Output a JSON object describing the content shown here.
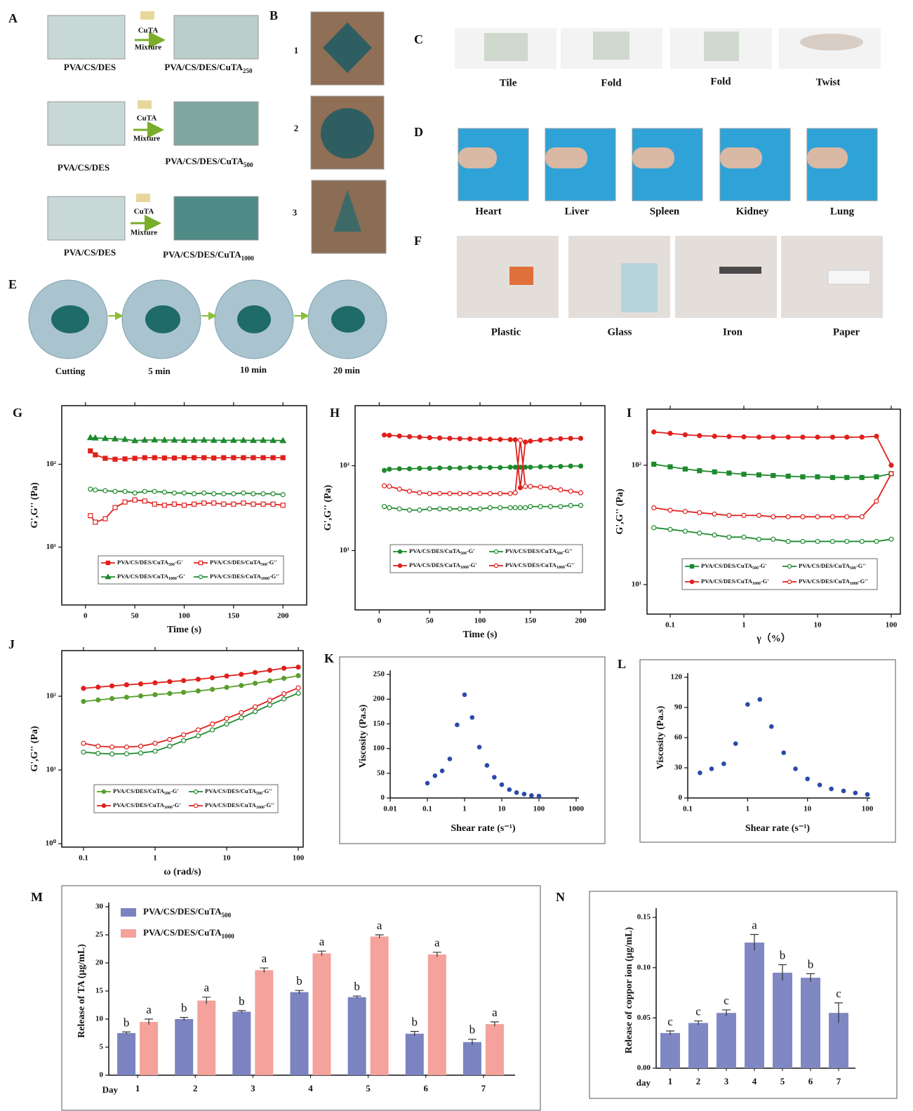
{
  "photo_panels": {
    "A": {
      "letter": "A",
      "rows": [
        {
          "left": "PVA/CS/DES",
          "reagent": "CuTA",
          "mixture": "Mixture",
          "right": "PVA/CS/DES/CuTA250"
        },
        {
          "left": "PVA/CS/DES",
          "reagent": "CuTA",
          "mixture": "Mixture",
          "right": "PVA/CS/DES/CuTA500"
        },
        {
          "left": "PVA/CS/DES",
          "reagent": "CuTA",
          "mixture": "Mixture",
          "right": "PVA/CS/DES/CuTA1000"
        }
      ]
    },
    "B": {
      "letter": "B",
      "items": [
        "1",
        "2",
        "3"
      ]
    },
    "C": {
      "letter": "C",
      "captions": [
        "Tile",
        "Fold",
        "Fold",
        "Twist"
      ]
    },
    "D": {
      "letter": "D",
      "captions": [
        "Heart",
        "Liver",
        "Spleen",
        "Kidney",
        "Lung"
      ]
    },
    "E": {
      "letter": "E",
      "captions": [
        "Cutting",
        "5 min",
        "10 min",
        "20 min"
      ]
    },
    "F": {
      "letter": "F",
      "captions": [
        "Plastic",
        "Glass",
        "Iron",
        "Paper"
      ]
    }
  },
  "chart_data": [
    {
      "panel": "G",
      "type": "line",
      "xlabel": "Time (s)",
      "ylabel": "G',G'' (Pa)",
      "x": [
        5,
        10,
        20,
        30,
        40,
        50,
        60,
        70,
        80,
        90,
        100,
        110,
        120,
        130,
        140,
        150,
        160,
        170,
        180,
        190,
        200
      ],
      "xlim": [
        -24,
        224
      ],
      "xticks": [
        0,
        50,
        100,
        150,
        200
      ],
      "ylog": true,
      "ylim": [
        2,
        510
      ],
      "yticks": [
        {
          "value": 10,
          "label": "10¹"
        },
        {
          "value": 100,
          "label": "10²"
        }
      ],
      "series": [
        {
          "name": "PVA/CS/DES/CuTA500-G'",
          "color": "#e0201c",
          "marker": "square",
          "filled": true,
          "values": [
            145,
            130,
            118,
            115,
            116,
            118,
            120,
            120,
            119,
            119,
            120,
            120,
            120,
            119,
            120,
            120,
            120,
            120,
            120,
            120,
            120
          ]
        },
        {
          "name": "PVA/CS/DES/CuTA500-G''",
          "color": "#e0201c",
          "marker": "square",
          "filled": false,
          "values": [
            24,
            20,
            22,
            30,
            35,
            37,
            36,
            33,
            32,
            33,
            32,
            33,
            34,
            34,
            33,
            33,
            34,
            33,
            33,
            33,
            32
          ]
        },
        {
          "name": "PVA/CS/DES/CuTA1000-G'",
          "color": "#1e8a2e",
          "marker": "triangle",
          "filled": true,
          "values": [
            210,
            208,
            205,
            203,
            200,
            193,
            196,
            197,
            196,
            196,
            195,
            195,
            196,
            195,
            194,
            195,
            195,
            194,
            195,
            194,
            193
          ]
        },
        {
          "name": "PVA/CS/DES/CuTA1000-G''",
          "color": "#1e8a2e",
          "marker": "circle",
          "filled": false,
          "values": [
            50,
            49,
            48,
            47,
            47,
            45,
            47,
            47,
            46,
            45,
            45,
            44,
            45,
            44,
            44,
            44,
            45,
            44,
            44,
            44,
            43
          ]
        }
      ]
    },
    {
      "panel": "H",
      "type": "line",
      "xlabel": "Time (s)",
      "ylabel": "G',G'' (Pa)",
      "x": [
        5,
        10,
        20,
        30,
        40,
        50,
        60,
        70,
        80,
        90,
        100,
        110,
        120,
        130,
        135,
        140,
        145,
        150,
        160,
        170,
        180,
        190,
        200
      ],
      "xlim": [
        -24,
        224
      ],
      "xticks": [
        0,
        50,
        100,
        150,
        200
      ],
      "ylog": true,
      "ylim": [
        2,
        510
      ],
      "yticks": [
        {
          "value": 10,
          "label": "10¹"
        },
        {
          "value": 100,
          "label": "10²"
        }
      ],
      "series": [
        {
          "name": "PVA/CS/DES/CuTA500-G'",
          "color": "#1e8a2e",
          "marker": "circle",
          "filled": true,
          "values": [
            88,
            91,
            92,
            92,
            93,
            93,
            94,
            94,
            94,
            95,
            95,
            95,
            95,
            96,
            96,
            96,
            96,
            96,
            97,
            97,
            98,
            99,
            99
          ]
        },
        {
          "name": "PVA/CS/DES/CuTA500-G''",
          "color": "#1e8a2e",
          "marker": "circle",
          "filled": false,
          "values": [
            33,
            32,
            31,
            30,
            30,
            31,
            31,
            31,
            31,
            31,
            31,
            32,
            32,
            32,
            32,
            32,
            32,
            33,
            33,
            33,
            33,
            34,
            34
          ]
        },
        {
          "name": "PVA/CS/DES/CuTA1000-G'",
          "color": "#e0201c",
          "marker": "circle",
          "filled": true,
          "values": [
            230,
            228,
            224,
            220,
            217,
            214,
            212,
            210,
            208,
            207,
            206,
            205,
            204,
            203,
            202,
            55,
            190,
            195,
            200,
            205,
            208,
            210,
            210
          ]
        },
        {
          "name": "PVA/CS/DES/CuTA1000-G''",
          "color": "#e0201c",
          "marker": "circle",
          "filled": false,
          "values": [
            58,
            57,
            53,
            50,
            48,
            47,
            47,
            47,
            47,
            47,
            47,
            47,
            47,
            47,
            48,
            200,
            57,
            57,
            56,
            55,
            52,
            50,
            48
          ]
        }
      ]
    },
    {
      "panel": "I",
      "type": "line",
      "xlabel": "γ（%）",
      "ylabel": "G',G'' (Pa)",
      "x": [
        0.06,
        0.1,
        0.16,
        0.25,
        0.4,
        0.63,
        1,
        1.6,
        2.5,
        4,
        6.3,
        10,
        16,
        25,
        40,
        63,
        100
      ],
      "xlog": true,
      "xlim": [
        0.0485,
        133
      ],
      "xticks": [
        0.1,
        1,
        10,
        100
      ],
      "ylog": true,
      "ylim": [
        5.66,
        295
      ],
      "yticks": [
        {
          "value": 10,
          "label": "10¹"
        },
        {
          "value": 100,
          "label": "10²"
        }
      ],
      "series": [
        {
          "name": "PVA/CS/DES/CuTA500-G'",
          "color": "#1e8a2e",
          "marker": "square",
          "filled": true,
          "values": [
            102,
            97,
            93,
            90,
            88,
            86,
            84,
            83,
            82,
            81,
            80,
            80,
            79,
            79,
            79,
            80,
            85
          ]
        },
        {
          "name": "PVA/CS/DES/CuTA500-G''",
          "color": "#1e8a2e",
          "marker": "circle",
          "filled": false,
          "values": [
            30,
            29,
            28,
            27,
            26,
            25,
            25,
            24,
            24,
            23,
            23,
            23,
            23,
            23,
            23,
            23,
            24
          ]
        },
        {
          "name": "PVA/CS/DES/CuTA1000-G'",
          "color": "#e0201c",
          "marker": "circle",
          "filled": true,
          "values": [
            190,
            185,
            180,
            177,
            175,
            174,
            173,
            172,
            172,
            172,
            172,
            172,
            172,
            172,
            172,
            175,
            100
          ]
        },
        {
          "name": "PVA/CS/DES/CuTA1000-G''",
          "color": "#e0201c",
          "marker": "circle",
          "filled": false,
          "values": [
            44,
            42,
            41,
            40,
            39,
            38,
            38,
            38,
            37,
            37,
            37,
            37,
            37,
            37,
            37,
            50,
            85
          ]
        }
      ]
    },
    {
      "panel": "J",
      "type": "line",
      "xlabel": "ω (rad/s)",
      "ylabel": "G',G'' (Pa)",
      "x": [
        0.1,
        0.16,
        0.25,
        0.4,
        0.63,
        1,
        1.6,
        2.5,
        4,
        6.3,
        10,
        16,
        25,
        40,
        63,
        100
      ],
      "xlog": true,
      "xlim": [
        0.0497,
        117
      ],
      "xticks": [
        0.1,
        1,
        10,
        100
      ],
      "ylog": true,
      "ylim": [
        0.9,
        416
      ],
      "yticks": [
        {
          "value": 1,
          "label": "10⁰"
        },
        {
          "value": 10,
          "label": "10¹"
        },
        {
          "value": 100,
          "label": "10²"
        }
      ],
      "series": [
        {
          "name": "PVA/CS/DES/CuTA500-G'",
          "color": "#5a9e2f",
          "marker": "circle",
          "filled": true,
          "values": [
            85,
            89,
            93,
            97,
            101,
            105,
            109,
            113,
            118,
            124,
            132,
            140,
            150,
            162,
            175,
            190
          ]
        },
        {
          "name": "PVA/CS/DES/CuTA500-G''",
          "color": "#1e8a2e",
          "marker": "circle",
          "filled": false,
          "values": [
            17.5,
            16.8,
            16.5,
            16.6,
            17,
            18,
            21,
            25,
            29,
            35,
            42,
            51,
            62,
            76,
            92,
            110
          ]
        },
        {
          "name": "PVA/CS/DES/CuTA1000-G'",
          "color": "#e0201c",
          "marker": "circle",
          "filled": true,
          "values": [
            128,
            133,
            138,
            143,
            147,
            152,
            158,
            163,
            170,
            178,
            188,
            198,
            210,
            225,
            240,
            248
          ]
        },
        {
          "name": "PVA/CS/DES/CuTA1000-G''",
          "color": "#e0201c",
          "marker": "circle",
          "filled": false,
          "values": [
            23,
            21,
            20.5,
            20.5,
            21,
            23,
            26,
            30,
            35,
            42,
            50,
            60,
            72,
            88,
            108,
            130
          ]
        }
      ]
    },
    {
      "panel": "K",
      "type": "scatter",
      "xlabel": "Shear rate (s⁻¹)",
      "ylabel": "Viscosity (Pa.s)",
      "color": "#2b4aa8",
      "x": [
        0.1,
        0.16,
        0.25,
        0.4,
        0.63,
        1,
        1.6,
        2.5,
        4,
        6.3,
        10,
        16,
        25,
        40,
        63,
        100
      ],
      "values": [
        30,
        45,
        55,
        79,
        148,
        209,
        163,
        103,
        66,
        42,
        27,
        17,
        11,
        8,
        5,
        4
      ],
      "xlog": true,
      "xlim": [
        0.01,
        1000
      ],
      "xticks": [
        0.01,
        0.1,
        1,
        10,
        100,
        1000
      ],
      "ylim": [
        0,
        250
      ],
      "yticks": [
        0,
        50,
        100,
        150,
        200,
        250
      ]
    },
    {
      "panel": "L",
      "type": "scatter",
      "xlabel": "Shear rate (s⁻¹)",
      "ylabel": "Viscosity (Pa.s)",
      "color": "#2b4aa8",
      "x": [
        0.16,
        0.25,
        0.4,
        0.63,
        1,
        1.6,
        2.5,
        4,
        6.3,
        10,
        16,
        25,
        40,
        63,
        100
      ],
      "values": [
        25,
        29,
        34,
        54,
        93,
        98,
        71,
        45,
        29,
        19,
        13,
        9,
        7,
        5,
        3.5
      ],
      "xlog": true,
      "xlim": [
        0.1,
        100
      ],
      "xticks": [
        0.1,
        1,
        10,
        100
      ],
      "ylim": [
        0,
        120
      ],
      "yticks": [
        0,
        30,
        60,
        90,
        120
      ]
    },
    {
      "panel": "M",
      "type": "bar",
      "xlabel": "Day",
      "ylabel": "Release of TA (μg/mL)",
      "categories": [
        "1",
        "2",
        "3",
        "4",
        "5",
        "6",
        "7"
      ],
      "ylim": [
        0,
        30
      ],
      "yticks": [
        0,
        5,
        10,
        15,
        20,
        25,
        30
      ],
      "series": [
        {
          "name": "PVA/CS/DES/CuTA500",
          "color": "#7b83c0",
          "values": [
            7.5,
            10,
            11.3,
            14.8,
            13.9,
            7.4,
            5.9
          ],
          "errors": [
            0.2,
            0.3,
            0.2,
            0.3,
            0.2,
            0.4,
            0.5
          ],
          "letters": [
            "b",
            "b",
            "b",
            "b",
            "b",
            "b",
            "b"
          ]
        },
        {
          "name": "PVA/CS/DES/CuTA1000",
          "color": "#f4a29b",
          "values": [
            9.5,
            13.3,
            18.7,
            21.7,
            24.7,
            21.5,
            9.1
          ],
          "errors": [
            0.5,
            0.6,
            0.4,
            0.4,
            0.3,
            0.4,
            0.4
          ],
          "letters": [
            "a",
            "a",
            "a",
            "a",
            "a",
            "a",
            "a"
          ]
        }
      ]
    },
    {
      "panel": "N",
      "type": "bar",
      "xlabel": "day",
      "ylabel": "Release of coppor ion (μg/mL)",
      "categories": [
        "1",
        "2",
        "3",
        "4",
        "5",
        "6",
        "7"
      ],
      "color": "#8088c4",
      "values": [
        0.035,
        0.045,
        0.055,
        0.125,
        0.095,
        0.09,
        0.055
      ],
      "errors": [
        0.002,
        0.002,
        0.003,
        0.008,
        0.008,
        0.004,
        0.01
      ],
      "letters": [
        "c",
        "c",
        "c",
        "a",
        "b",
        "b",
        "c"
      ],
      "ylim": [
        0,
        0.155
      ],
      "yticks": [
        {
          "value": 0,
          "label": "0.00"
        },
        0.05,
        {
          "value": 0.1,
          "label": "0.10"
        },
        0.15
      ]
    }
  ]
}
